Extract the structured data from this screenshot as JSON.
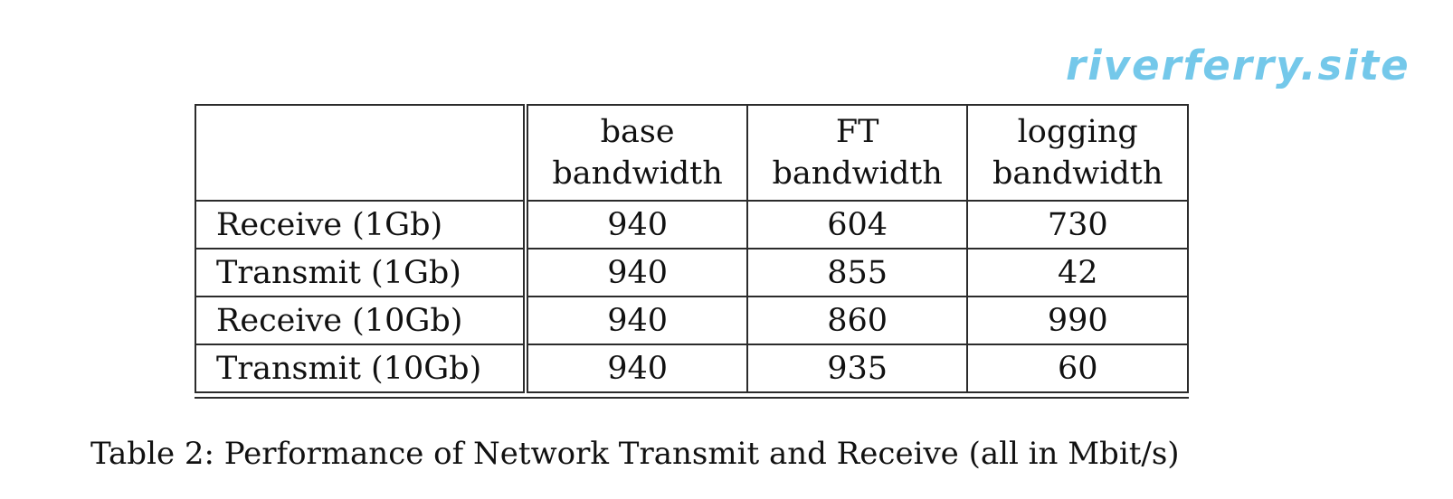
{
  "watermark": "riverferry.site",
  "table": {
    "header": {
      "row_label": "",
      "columns": [
        {
          "line1": "base",
          "line2": "bandwidth"
        },
        {
          "line1": "FT",
          "line2": "bandwidth"
        },
        {
          "line1": "logging",
          "line2": "bandwidth"
        }
      ]
    },
    "rows": [
      {
        "label": "Receive (1Gb)",
        "values": [
          "940",
          "604",
          "730"
        ]
      },
      {
        "label": "Transmit (1Gb)",
        "values": [
          "940",
          "855",
          "42"
        ]
      },
      {
        "label": "Receive (10Gb)",
        "values": [
          "940",
          "860",
          "990"
        ]
      },
      {
        "label": "Transmit (10Gb)",
        "values": [
          "940",
          "935",
          "60"
        ]
      }
    ]
  },
  "caption": "Table 2: Performance of Network Transmit and Receive (all in Mbit/s)",
  "chart_data": {
    "type": "table",
    "columns": [
      "",
      "base bandwidth",
      "FT bandwidth",
      "logging bandwidth"
    ],
    "rows": [
      [
        "Receive (1Gb)",
        940,
        604,
        730
      ],
      [
        "Transmit (1Gb)",
        940,
        855,
        42
      ],
      [
        "Receive (10Gb)",
        940,
        860,
        990
      ],
      [
        "Transmit (10Gb)",
        940,
        935,
        60
      ]
    ]
  }
}
